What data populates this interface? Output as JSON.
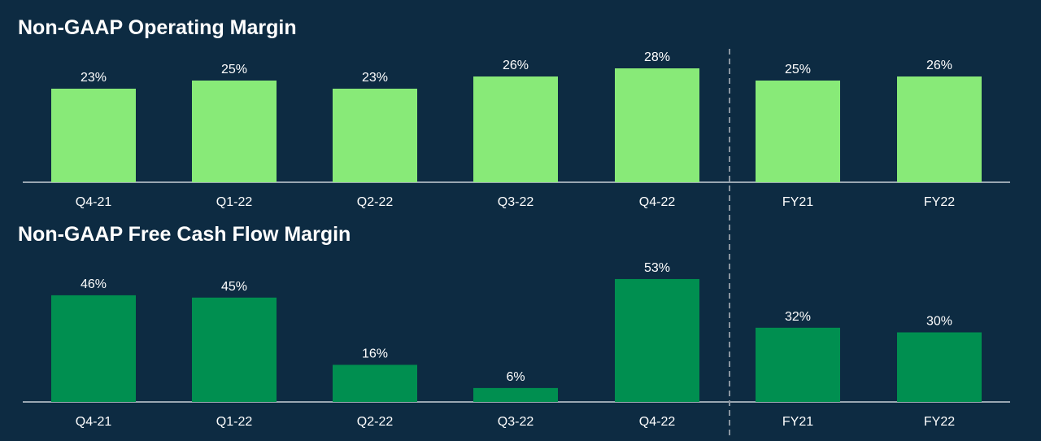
{
  "chart_data": [
    {
      "type": "bar",
      "title": "Non-GAAP Operating Margin",
      "categories": [
        "Q4-21",
        "Q1-22",
        "Q2-22",
        "Q3-22",
        "Q4-22",
        "FY21",
        "FY22"
      ],
      "values": [
        23,
        25,
        23,
        26,
        28,
        25,
        26
      ],
      "value_labels": [
        "23%",
        "25%",
        "23%",
        "26%",
        "28%",
        "25%",
        "26%"
      ],
      "bar_color": "#88ea78",
      "ylim": [
        0,
        40
      ]
    },
    {
      "type": "bar",
      "title": "Non-GAAP Free Cash Flow Margin",
      "categories": [
        "Q4-21",
        "Q1-22",
        "Q2-22",
        "Q3-22",
        "Q4-22",
        "FY21",
        "FY22"
      ],
      "values": [
        46,
        45,
        16,
        6,
        53,
        32,
        30
      ],
      "value_labels": [
        "46%",
        "45%",
        "16%",
        "6%",
        "53%",
        "32%",
        "30%"
      ],
      "bar_color": "#008f50",
      "ylim": [
        0,
        60
      ]
    }
  ],
  "colors": {
    "background": "#0d2b42",
    "axis": "#c8d0d6",
    "divider": "#8a96a0",
    "text": "#ffffff"
  }
}
